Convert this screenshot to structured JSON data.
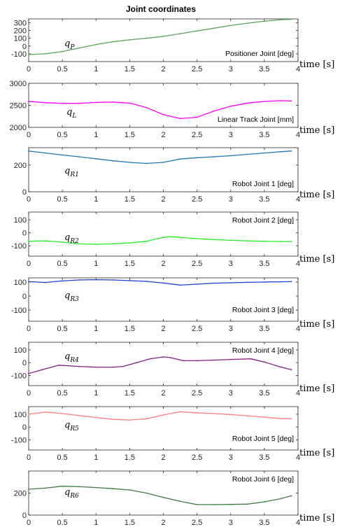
{
  "figure": {
    "title": "Joint coordinates",
    "colors": {
      "axis": "#262626",
      "background": "#ffffff"
    }
  },
  "chart_data": [
    {
      "type": "line",
      "label": "Positioner Joint [deg]",
      "symbol": "q",
      "subscript": "P",
      "xlabel": "time [s]",
      "xlim": [
        0,
        4
      ],
      "ylim": [
        -200,
        350
      ],
      "yticks": [
        300,
        200,
        100,
        0,
        -100
      ],
      "color": "#5aa55a",
      "x": [
        0,
        0.25,
        0.5,
        0.75,
        1.0,
        1.25,
        1.5,
        1.75,
        2.0,
        2.25,
        2.5,
        2.75,
        3.0,
        3.25,
        3.5,
        3.75,
        3.9
      ],
      "y": [
        -110,
        -100,
        -70,
        -25,
        20,
        55,
        80,
        100,
        125,
        160,
        195,
        230,
        265,
        295,
        320,
        340,
        345
      ]
    },
    {
      "type": "line",
      "label": "Linear Track Joint [mm]",
      "symbol": "q",
      "subscript": "L",
      "xlabel": "time [s]",
      "xlim": [
        0,
        4
      ],
      "ylim": [
        2000,
        3000
      ],
      "yticks": [
        3000,
        2500,
        2000
      ],
      "color": "#ff00ff",
      "x": [
        0,
        0.25,
        0.5,
        0.75,
        1.0,
        1.25,
        1.5,
        1.75,
        2.0,
        2.25,
        2.5,
        2.75,
        3.0,
        3.25,
        3.5,
        3.75,
        3.9
      ],
      "y": [
        2590,
        2560,
        2545,
        2545,
        2565,
        2575,
        2550,
        2450,
        2290,
        2200,
        2230,
        2370,
        2480,
        2550,
        2590,
        2605,
        2600
      ]
    },
    {
      "type": "line",
      "label": "Robot Joint 1 [deg]",
      "symbol": "q",
      "subscript": "R1",
      "xlabel": "time [s]",
      "xlim": [
        0,
        4
      ],
      "ylim": [
        0,
        330
      ],
      "yticks": [
        200,
        0
      ],
      "color": "#1f77b4",
      "x": [
        0,
        0.25,
        0.5,
        0.75,
        1.0,
        1.25,
        1.5,
        1.75,
        2.0,
        2.25,
        2.5,
        2.75,
        3.0,
        3.25,
        3.5,
        3.75,
        3.9
      ],
      "y": [
        305,
        290,
        275,
        262,
        247,
        232,
        220,
        212,
        220,
        245,
        255,
        262,
        270,
        280,
        290,
        300,
        305
      ]
    },
    {
      "type": "line",
      "label": "Robot Joint 2 [deg]",
      "symbol": "q",
      "subscript": "R2",
      "xlabel": "time [s]",
      "xlim": [
        0,
        4
      ],
      "ylim": [
        -180,
        160
      ],
      "yticks": [
        100,
        0,
        -100
      ],
      "color": "#22ee22",
      "x": [
        0,
        0.25,
        0.5,
        0.75,
        1.0,
        1.25,
        1.5,
        1.75,
        2.0,
        2.1,
        2.25,
        2.5,
        2.75,
        3.0,
        3.25,
        3.5,
        3.75,
        3.9
      ],
      "y": [
        -65,
        -62,
        -72,
        -85,
        -88,
        -85,
        -78,
        -65,
        -35,
        -30,
        -35,
        -45,
        -52,
        -58,
        -62,
        -65,
        -67,
        -67
      ]
    },
    {
      "type": "line",
      "label": "Robot Joint 3 [deg]",
      "symbol": "q",
      "subscript": "R3",
      "xlabel": "time [s]",
      "xlim": [
        0,
        4
      ],
      "ylim": [
        -180,
        130
      ],
      "yticks": [
        100,
        0,
        -100
      ],
      "color": "#1f3fcf",
      "x": [
        0,
        0.25,
        0.5,
        0.75,
        1.0,
        1.25,
        1.5,
        1.75,
        2.0,
        2.25,
        2.5,
        2.75,
        3.0,
        3.25,
        3.5,
        3.75,
        3.9
      ],
      "y": [
        103,
        97,
        108,
        115,
        117,
        115,
        110,
        105,
        93,
        78,
        85,
        92,
        95,
        98,
        100,
        102,
        103
      ]
    },
    {
      "type": "line",
      "label": "Robot Joint 4 [deg]",
      "symbol": "q",
      "subscript": "R4",
      "xlabel": "time [s]",
      "xlim": [
        0,
        4
      ],
      "ylim": [
        -180,
        160
      ],
      "yticks": [
        100,
        0,
        -100
      ],
      "color": "#8b1a8b",
      "x": [
        0,
        0.2,
        0.45,
        0.75,
        1.0,
        1.25,
        1.4,
        1.6,
        1.8,
        2.0,
        2.1,
        2.3,
        2.5,
        2.75,
        3.0,
        3.3,
        3.5,
        3.75,
        3.9
      ],
      "y": [
        -85,
        -55,
        -20,
        -30,
        -35,
        -35,
        -30,
        0,
        30,
        45,
        40,
        15,
        15,
        20,
        25,
        30,
        5,
        -35,
        -55
      ]
    },
    {
      "type": "line",
      "label": "Robot Joint 5 [deg]",
      "symbol": "q",
      "subscript": "R5",
      "xlabel": "time [s]",
      "xlim": [
        0,
        4
      ],
      "ylim": [
        -180,
        160
      ],
      "yticks": [
        100,
        0,
        -100
      ],
      "color": "#ff7f7f",
      "x": [
        0,
        0.25,
        0.5,
        0.75,
        1.0,
        1.25,
        1.5,
        1.75,
        2.0,
        2.25,
        2.5,
        2.75,
        3.0,
        3.25,
        3.5,
        3.75,
        3.9
      ],
      "y": [
        100,
        118,
        105,
        90,
        75,
        60,
        55,
        65,
        95,
        120,
        112,
        105,
        98,
        88,
        78,
        65,
        65
      ]
    },
    {
      "type": "line",
      "label": "Robot Joint 6 [deg]",
      "symbol": "q",
      "subscript": "R6",
      "xlabel": "time [s]",
      "xlim": [
        0,
        4
      ],
      "ylim": [
        0,
        400
      ],
      "yticks": [
        200,
        0
      ],
      "color": "#3d7a3d",
      "x": [
        0,
        0.25,
        0.5,
        0.75,
        1.0,
        1.25,
        1.5,
        1.75,
        2.0,
        2.25,
        2.5,
        2.75,
        3.0,
        3.25,
        3.5,
        3.75,
        3.9
      ],
      "y": [
        235,
        245,
        262,
        258,
        250,
        240,
        228,
        200,
        160,
        125,
        95,
        95,
        97,
        100,
        120,
        150,
        175
      ]
    }
  ],
  "xticks": [
    "0",
    "0.5",
    "1",
    "1.5",
    "2",
    "2.5",
    "3",
    "3.5",
    "4"
  ]
}
